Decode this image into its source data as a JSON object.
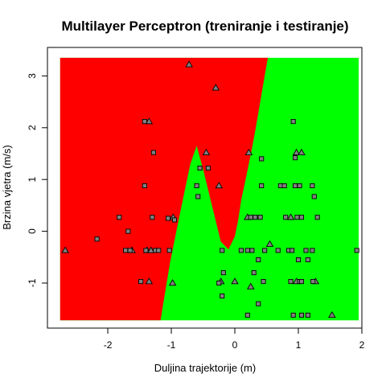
{
  "chart_data": {
    "type": "scatter",
    "title": "Multilayer Perceptron (treniranje i testiranje)",
    "xlabel": "Duljina trajektorije (m)",
    "ylabel": "Brzina vjetra (m/s)",
    "xlim": [
      -2.95,
      2.0
    ],
    "ylim": [
      -1.87,
      3.55
    ],
    "x_ticks": [
      -2,
      -1,
      0,
      1,
      2
    ],
    "y_ticks": [
      -1,
      0,
      1,
      2,
      3
    ],
    "grid": false,
    "colors": {
      "class_a_region": "#ff0000",
      "class_b_region": "#00ff00",
      "marker_fill": "#808080",
      "marker_stroke": "#000000"
    },
    "regions": {
      "x_range": [
        -2.75,
        1.95
      ],
      "y_range": [
        -1.72,
        3.35
      ],
      "boundary": [
        [
          0.52,
          3.35
        ],
        [
          0.47,
          3.0
        ],
        [
          0.4,
          2.5
        ],
        [
          0.33,
          2.0
        ],
        [
          0.27,
          1.6
        ],
        [
          0.17,
          1.0
        ],
        [
          0.1,
          0.6
        ],
        [
          0.05,
          0.2
        ],
        [
          0.0,
          -0.1
        ],
        [
          -0.1,
          -0.35
        ],
        [
          -0.22,
          -0.2
        ],
        [
          -0.3,
          0.2
        ],
        [
          -0.38,
          0.6
        ],
        [
          -0.5,
          1.2
        ],
        [
          -0.6,
          1.65
        ],
        [
          -0.7,
          1.3
        ],
        [
          -0.82,
          0.6
        ],
        [
          -0.92,
          0.0
        ],
        [
          -1.02,
          -0.6
        ],
        [
          -1.1,
          -1.2
        ],
        [
          -1.17,
          -1.72
        ]
      ]
    },
    "series": [
      {
        "marker": "triangle",
        "points": [
          [
            -0.72,
            3.22
          ],
          [
            -0.3,
            2.77
          ],
          [
            -1.35,
            2.12
          ],
          [
            -0.45,
            1.52
          ],
          [
            0.22,
            1.52
          ],
          [
            0.97,
            1.52
          ],
          [
            1.05,
            1.52
          ],
          [
            -0.25,
            0.88
          ],
          [
            -0.97,
            0.27
          ],
          [
            0.2,
            0.27
          ],
          [
            0.88,
            0.27
          ],
          [
            -1.62,
            -0.37
          ],
          [
            -1.38,
            -0.37
          ],
          [
            -1.32,
            -0.37
          ],
          [
            0.55,
            -0.25
          ],
          [
            -1.35,
            -0.97
          ],
          [
            -0.98,
            -1.0
          ],
          [
            -0.22,
            -0.97
          ],
          [
            0.0,
            -0.97
          ],
          [
            0.25,
            -1.07
          ],
          [
            0.97,
            -0.97
          ],
          [
            1.27,
            -0.97
          ],
          [
            -2.67,
            -0.37
          ],
          [
            1.53,
            -1.62
          ]
        ]
      },
      {
        "marker": "square",
        "points": [
          [
            -1.42,
            2.12
          ],
          [
            -1.28,
            1.52
          ],
          [
            0.42,
            1.4
          ],
          [
            0.92,
            2.12
          ],
          [
            -0.55,
            1.22
          ],
          [
            -0.42,
            1.22
          ],
          [
            0.95,
            1.42
          ],
          [
            0.42,
            0.88
          ],
          [
            0.72,
            0.88
          ],
          [
            0.78,
            0.88
          ],
          [
            0.95,
            0.88
          ],
          [
            1.02,
            0.88
          ],
          [
            1.22,
            0.88
          ],
          [
            1.25,
            0.67
          ],
          [
            -0.6,
            0.88
          ],
          [
            -0.58,
            0.67
          ],
          [
            -1.42,
            0.88
          ],
          [
            -1.82,
            0.27
          ],
          [
            -1.3,
            0.27
          ],
          [
            -1.05,
            0.25
          ],
          [
            -0.95,
            0.22
          ],
          [
            0.25,
            0.27
          ],
          [
            0.32,
            0.27
          ],
          [
            0.4,
            0.27
          ],
          [
            0.8,
            0.27
          ],
          [
            0.98,
            0.27
          ],
          [
            1.05,
            0.27
          ],
          [
            1.3,
            0.27
          ],
          [
            -1.68,
            0.0
          ],
          [
            -2.17,
            -0.15
          ],
          [
            -1.72,
            -0.37
          ],
          [
            -1.65,
            -0.37
          ],
          [
            -1.4,
            -0.37
          ],
          [
            -1.25,
            -0.37
          ],
          [
            -1.2,
            -0.37
          ],
          [
            -1.03,
            -0.37
          ],
          [
            -0.2,
            -0.37
          ],
          [
            0.1,
            -0.37
          ],
          [
            0.2,
            -0.37
          ],
          [
            0.27,
            -0.37
          ],
          [
            0.47,
            -0.37
          ],
          [
            0.68,
            -0.37
          ],
          [
            0.85,
            -0.37
          ],
          [
            0.9,
            -0.37
          ],
          [
            1.12,
            -0.37
          ],
          [
            1.22,
            -0.37
          ],
          [
            1.92,
            -0.37
          ],
          [
            0.37,
            -0.55
          ],
          [
            1.0,
            -0.55
          ],
          [
            1.15,
            -0.55
          ],
          [
            -0.18,
            -0.8
          ],
          [
            0.3,
            -0.8
          ],
          [
            -1.48,
            -0.97
          ],
          [
            -0.25,
            -1.0
          ],
          [
            0.45,
            -0.97
          ],
          [
            0.88,
            -0.97
          ],
          [
            1.02,
            -0.97
          ],
          [
            1.05,
            -0.97
          ],
          [
            1.23,
            -0.97
          ],
          [
            -0.2,
            -1.25
          ],
          [
            0.37,
            -1.4
          ],
          [
            0.2,
            -1.62
          ],
          [
            0.92,
            -1.62
          ],
          [
            1.05,
            -1.62
          ],
          [
            1.15,
            -1.62
          ]
        ]
      }
    ]
  }
}
